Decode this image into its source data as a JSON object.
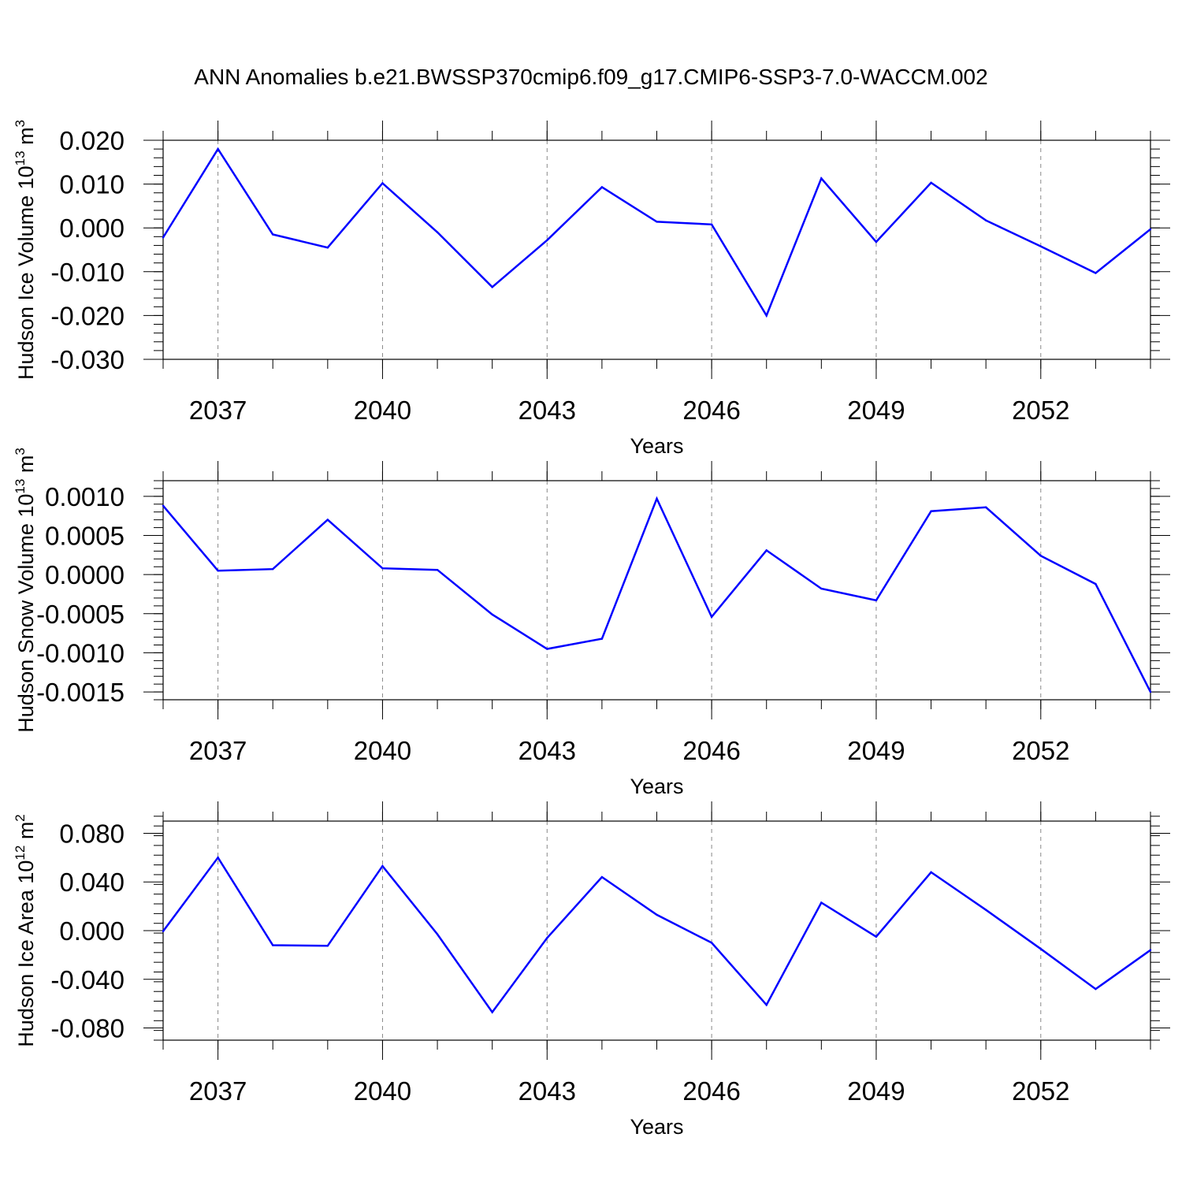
{
  "title": "ANN Anomalies b.e21.BWSSP370cmip6.f09_g17.CMIP6-SSP3-7.0-WACCM.002",
  "colors": {
    "series": "#0000ff",
    "axes": "#000000",
    "grid": "#888888"
  },
  "chart_data": [
    {
      "type": "line",
      "xlabel": "Years",
      "ylabel": "Hudson Ice Volume 10",
      "ylabel_exp": "13",
      "ylabel_unit": " m",
      "ylabel_unit_exp": "3",
      "xlim": [
        2036,
        2054
      ],
      "ylim": [
        -0.03,
        0.02
      ],
      "x_ticks": [
        2037,
        2040,
        2043,
        2046,
        2049,
        2052
      ],
      "x_tick_labels": [
        "2037",
        "2040",
        "2043",
        "2046",
        "2049",
        "2052"
      ],
      "y_ticks": [
        0.02,
        0.01,
        0.0,
        -0.01,
        -0.02,
        -0.03
      ],
      "y_tick_labels": [
        "0.020",
        "0.010",
        "0.000",
        "-0.010",
        "-0.020",
        "-0.030"
      ],
      "grid": "vertical dashed at labeled years",
      "x": [
        2036,
        2037,
        2038,
        2039,
        2040,
        2041,
        2042,
        2043,
        2044,
        2045,
        2046,
        2047,
        2048,
        2049,
        2050,
        2051,
        2052,
        2053,
        2054
      ],
      "y": [
        -0.0022,
        0.018,
        -0.0015,
        -0.0045,
        0.0102,
        -0.001,
        -0.0135,
        -0.0028,
        0.0093,
        0.0014,
        0.0008,
        -0.02,
        0.0113,
        -0.0032,
        0.0103,
        0.0017,
        -0.0042,
        -0.0103,
        -0.0003
      ]
    },
    {
      "type": "line",
      "xlabel": "Years",
      "ylabel": "Hudson Snow Volume 10",
      "ylabel_exp": "13",
      "ylabel_unit": " m",
      "ylabel_unit_exp": "3",
      "xlim": [
        2036,
        2054
      ],
      "ylim": [
        -0.0016,
        0.0012
      ],
      "x_ticks": [
        2037,
        2040,
        2043,
        2046,
        2049,
        2052
      ],
      "x_tick_labels": [
        "2037",
        "2040",
        "2043",
        "2046",
        "2049",
        "2052"
      ],
      "y_ticks": [
        0.001,
        0.0005,
        0.0,
        -0.0005,
        -0.001,
        -0.0015
      ],
      "y_tick_labels": [
        "0.0010",
        "0.0005",
        "0.0000",
        "-0.0005",
        "-0.0010",
        "-0.0015"
      ],
      "grid": "vertical dashed at labeled years",
      "x": [
        2036,
        2037,
        2038,
        2039,
        2040,
        2041,
        2042,
        2043,
        2044,
        2045,
        2046,
        2047,
        2048,
        2049,
        2050,
        2051,
        2052,
        2053,
        2054
      ],
      "y": [
        0.00088,
        5e-05,
        7e-05,
        0.0007,
        8e-05,
        6e-05,
        -0.00051,
        -0.00095,
        -0.00082,
        0.00097,
        -0.00054,
        0.00031,
        -0.00018,
        -0.00033,
        0.00081,
        0.00086,
        0.00024,
        -0.00012,
        -0.0015
      ]
    },
    {
      "type": "line",
      "xlabel": "Years",
      "ylabel": "Hudson Ice Area 10",
      "ylabel_exp": "12",
      "ylabel_unit": " m",
      "ylabel_unit_exp": "2",
      "xlim": [
        2036,
        2054
      ],
      "ylim": [
        -0.09,
        0.09
      ],
      "x_ticks": [
        2037,
        2040,
        2043,
        2046,
        2049,
        2052
      ],
      "x_tick_labels": [
        "2037",
        "2040",
        "2043",
        "2046",
        "2049",
        "2052"
      ],
      "y_ticks": [
        0.08,
        0.04,
        0.0,
        -0.04,
        -0.08
      ],
      "y_tick_labels": [
        "0.080",
        "0.040",
        "0.000",
        "-0.040",
        "-0.080"
      ],
      "grid": "vertical dashed at labeled years",
      "x": [
        2036,
        2037,
        2038,
        2039,
        2040,
        2041,
        2042,
        2043,
        2044,
        2045,
        2046,
        2047,
        2048,
        2049,
        2050,
        2051,
        2052,
        2053,
        2054
      ],
      "y": [
        -0.0005,
        0.06,
        -0.012,
        -0.0125,
        0.053,
        -0.003,
        -0.067,
        -0.006,
        0.044,
        0.013,
        -0.01,
        -0.061,
        0.023,
        -0.005,
        0.048,
        0.017,
        -0.015,
        -0.048,
        -0.016
      ]
    }
  ]
}
